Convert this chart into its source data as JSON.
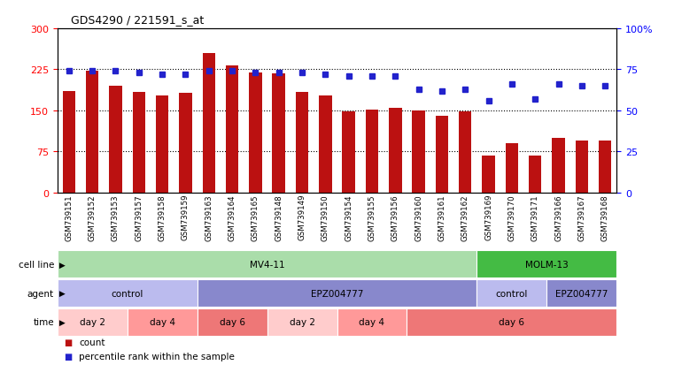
{
  "title": "GDS4290 / 221591_s_at",
  "samples": [
    "GSM739151",
    "GSM739152",
    "GSM739153",
    "GSM739157",
    "GSM739158",
    "GSM739159",
    "GSM739163",
    "GSM739164",
    "GSM739165",
    "GSM739148",
    "GSM739149",
    "GSM739150",
    "GSM739154",
    "GSM739155",
    "GSM739156",
    "GSM739160",
    "GSM739161",
    "GSM739162",
    "GSM739169",
    "GSM739170",
    "GSM739171",
    "GSM739166",
    "GSM739167",
    "GSM739168"
  ],
  "counts": [
    185,
    222,
    195,
    183,
    177,
    182,
    255,
    232,
    220,
    218,
    183,
    178,
    148,
    152,
    155,
    150,
    140,
    148,
    68,
    90,
    68,
    100,
    95,
    95
  ],
  "percentiles": [
    74,
    74,
    74,
    73,
    72,
    72,
    74,
    74,
    73,
    73,
    73,
    72,
    71,
    71,
    71,
    63,
    62,
    63,
    56,
    66,
    57,
    66,
    65,
    65
  ],
  "ylim_left": [
    0,
    300
  ],
  "ylim_right": [
    0,
    100
  ],
  "yticks_left": [
    0,
    75,
    150,
    225,
    300
  ],
  "yticks_right": [
    0,
    25,
    50,
    75,
    100
  ],
  "bar_color": "#BB1111",
  "dot_color": "#2222CC",
  "bg_color": "#FFFFFF",
  "cell_line_row": {
    "label": "cell line",
    "segments": [
      {
        "text": "MV4-11",
        "start": 0,
        "end": 18,
        "color": "#AADDAA"
      },
      {
        "text": "MOLM-13",
        "start": 18,
        "end": 24,
        "color": "#44BB44"
      }
    ]
  },
  "agent_row": {
    "label": "agent",
    "segments": [
      {
        "text": "control",
        "start": 0,
        "end": 6,
        "color": "#BBBBEE"
      },
      {
        "text": "EPZ004777",
        "start": 6,
        "end": 18,
        "color": "#8888CC"
      },
      {
        "text": "control",
        "start": 18,
        "end": 21,
        "color": "#BBBBEE"
      },
      {
        "text": "EPZ004777",
        "start": 21,
        "end": 24,
        "color": "#8888CC"
      }
    ]
  },
  "time_row": {
    "label": "time",
    "segments": [
      {
        "text": "day 2",
        "start": 0,
        "end": 3,
        "color": "#FFCCCC"
      },
      {
        "text": "day 4",
        "start": 3,
        "end": 6,
        "color": "#FF9999"
      },
      {
        "text": "day 6",
        "start": 6,
        "end": 9,
        "color": "#EE7777"
      },
      {
        "text": "day 2",
        "start": 9,
        "end": 12,
        "color": "#FFCCCC"
      },
      {
        "text": "day 4",
        "start": 12,
        "end": 15,
        "color": "#FF9999"
      },
      {
        "text": "day 6",
        "start": 15,
        "end": 24,
        "color": "#EE7777"
      }
    ]
  },
  "legend": [
    {
      "label": "count",
      "color": "#BB1111"
    },
    {
      "label": "percentile rank within the sample",
      "color": "#2222CC"
    }
  ]
}
